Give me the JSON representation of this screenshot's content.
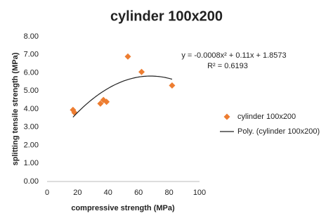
{
  "chart_data": {
    "type": "scatter",
    "title": "cylinder 100x200",
    "x_label": "compressive strength (MPa)",
    "y_label": "splitting tensile strength (MPa)",
    "series": [
      {
        "name": "cylinder 100x200",
        "color": "#ed7d31",
        "x": [
          17,
          18,
          35,
          37,
          39,
          53,
          62,
          82
        ],
        "values": [
          3.95,
          3.8,
          4.3,
          4.5,
          4.4,
          6.9,
          6.05,
          5.3
        ]
      }
    ],
    "trendline": {
      "name": "Poly. (cylinder 100x200)",
      "order": 2,
      "color": "#222222",
      "equation": "y = -0.0008x² + 0.11x + 1.8573",
      "r_squared": "R² = 0.6193"
    },
    "xlim": [
      0,
      100
    ],
    "xticks": [
      0,
      20,
      40,
      60,
      80,
      100
    ],
    "ylim": [
      0,
      8
    ],
    "yticks": [
      {
        "value": 0,
        "label": "0.00"
      },
      {
        "value": 1,
        "label": "1.00"
      },
      {
        "value": 2,
        "label": "2.00"
      },
      {
        "value": 3,
        "label": "3.00"
      },
      {
        "value": 4,
        "label": "4.00"
      },
      {
        "value": 5,
        "label": "5.00"
      },
      {
        "value": 6,
        "label": "6.00"
      },
      {
        "value": 7,
        "label": "7.00"
      },
      {
        "value": 8,
        "label": "8.00"
      }
    ],
    "grid": false,
    "legend": "right"
  }
}
